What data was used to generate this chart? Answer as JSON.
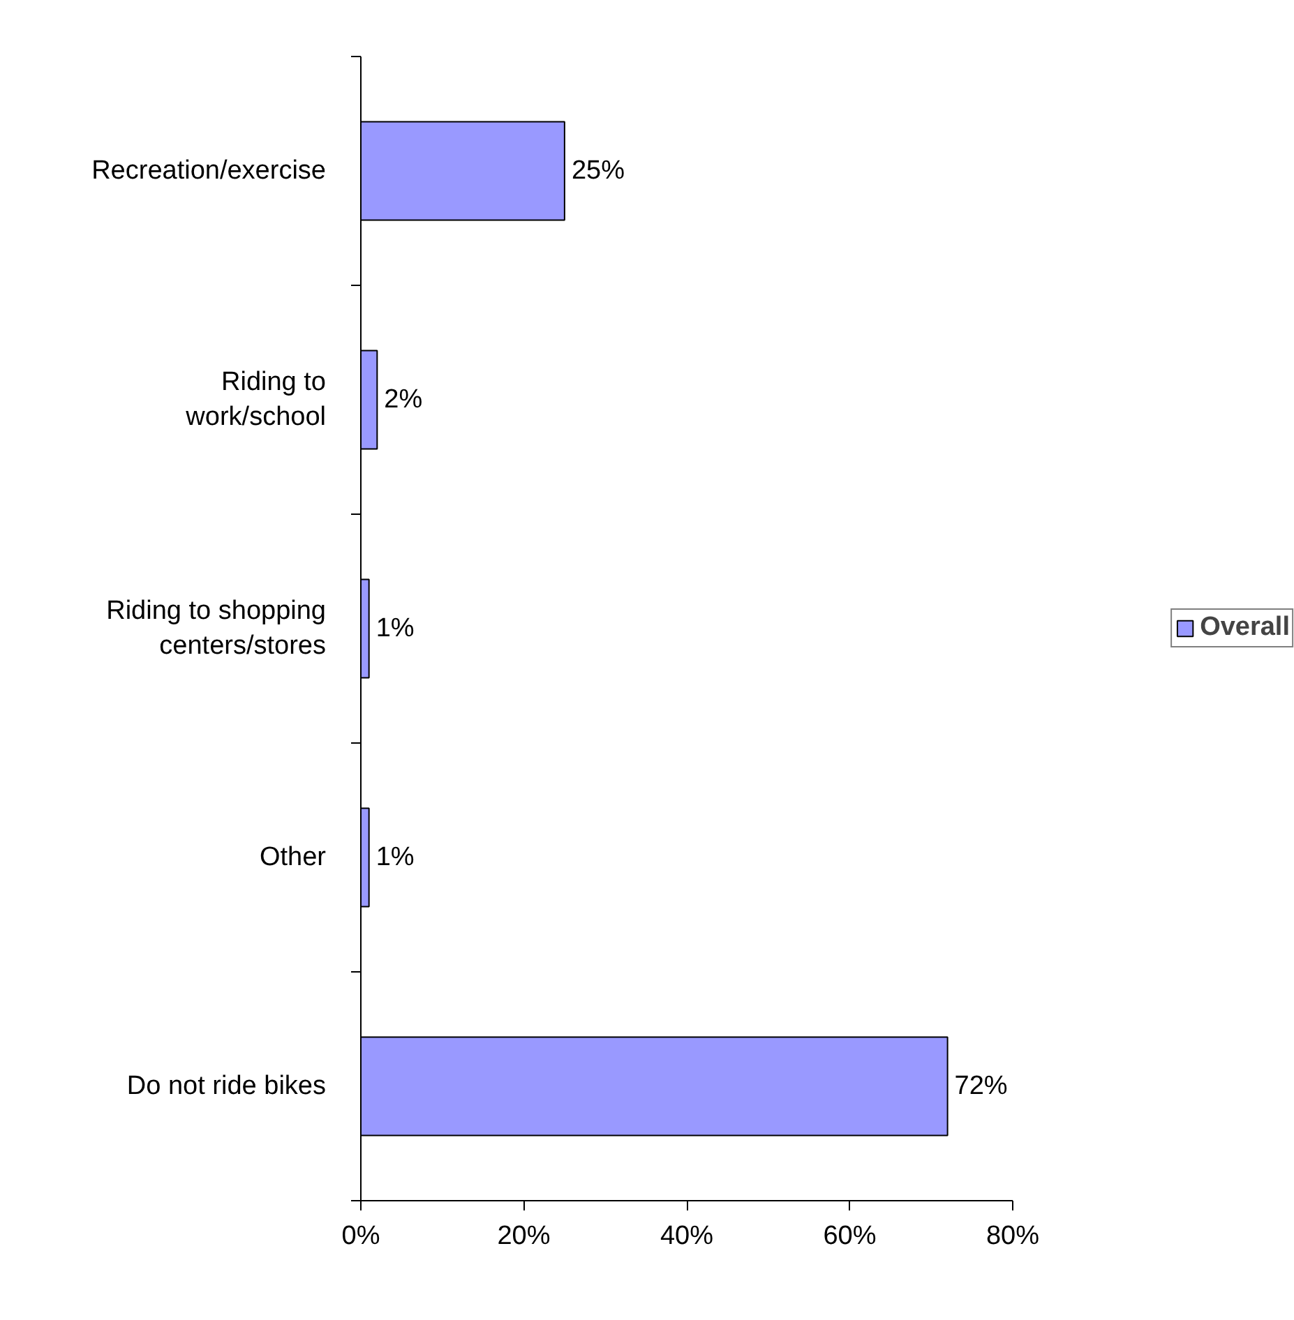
{
  "chart_data": {
    "type": "bar",
    "orientation": "horizontal",
    "categories": [
      "Recreation/exercise",
      "Riding to work/school",
      "Riding to shopping centers/stores",
      "Other",
      "Do not ride bikes"
    ],
    "series": [
      {
        "name": "Overall",
        "color": "#9999ff",
        "values": [
          25,
          2,
          1,
          1,
          72
        ],
        "value_labels": [
          "25%",
          "2%",
          "1%",
          "1%",
          "72%"
        ]
      }
    ],
    "xlim": [
      0,
      80
    ],
    "xticks": [
      {
        "value": 0,
        "label": "0%"
      },
      {
        "value": 20,
        "label": "20%"
      },
      {
        "value": 40,
        "label": "40%"
      },
      {
        "value": 60,
        "label": "60%"
      },
      {
        "value": 80,
        "label": "80%"
      }
    ],
    "grid": false,
    "legend": "right"
  }
}
